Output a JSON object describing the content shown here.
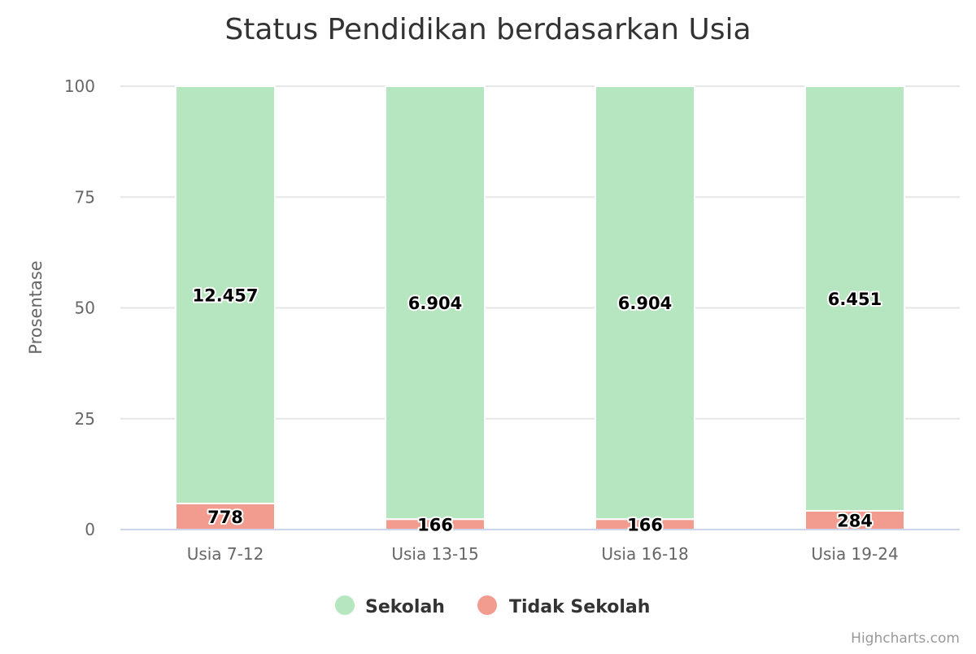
{
  "chart_data": {
    "type": "bar",
    "stacking": "percent",
    "title": "Status Pendidikan berdasarkan Usia",
    "xlabel": "",
    "ylabel": "Prosentase",
    "ylim": [
      0,
      100
    ],
    "yticks": [
      0,
      25,
      50,
      75,
      100
    ],
    "grid": true,
    "legend_position": "bottom-center",
    "categories": [
      "Usia 7-12",
      "Usia 13-15",
      "Usia 16-18",
      "Usia 19-24"
    ],
    "series": [
      {
        "name": "Sekolah",
        "color": "#b5e6bf",
        "values": [
          12457,
          6904,
          6904,
          6451
        ],
        "labels": [
          "12.457",
          "6.904",
          "6.904",
          "6.451"
        ]
      },
      {
        "name": "Tidak Sekolah",
        "color": "#f29c8f",
        "values": [
          778,
          166,
          166,
          284
        ],
        "labels": [
          "778",
          "166",
          "166",
          "284"
        ]
      }
    ],
    "credits": "Highcharts.com"
  }
}
